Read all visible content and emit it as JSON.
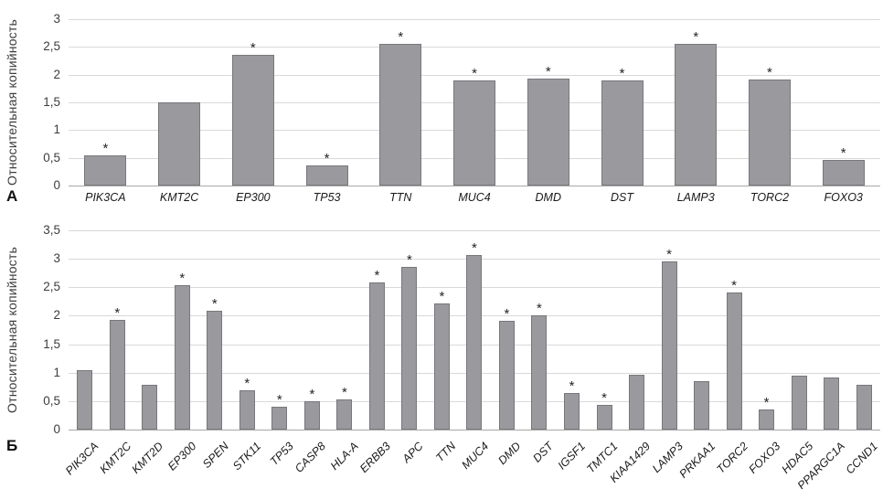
{
  "figure": {
    "background": "#ffffff",
    "bar_fill": "#9a9a9e",
    "bar_border": "#77777c",
    "gridline_color": "#d9d9d9",
    "axis_color": "#a8a8a8",
    "text_color": "#262626",
    "significance_marker": "*"
  },
  "chart_data": [
    {
      "type": "bar",
      "panel": "А",
      "title": "",
      "xlabel": "",
      "ylabel": "Относительная копийность",
      "ylim": [
        0,
        3
      ],
      "grid": true,
      "ytick_values": [
        0,
        0.5,
        1,
        1.5,
        2,
        2.5,
        3
      ],
      "ytick_labels": [
        "0",
        "0,5",
        "1",
        "1,5",
        "2",
        "2,5",
        "3"
      ],
      "categories": [
        "PIK3CA",
        "KMT2C",
        "EP300",
        "TP53",
        "TTN",
        "MUC4",
        "DMD",
        "DST",
        "LAMP3",
        "TORC2",
        "FOXO3"
      ],
      "values": [
        0.55,
        1.5,
        2.35,
        0.37,
        2.55,
        1.9,
        1.93,
        1.89,
        2.56,
        1.91,
        0.46
      ],
      "significant": [
        true,
        false,
        true,
        true,
        true,
        true,
        true,
        true,
        true,
        true,
        true
      ],
      "xlabel_rotation": 0
    },
    {
      "type": "bar",
      "panel": "Б",
      "title": "",
      "xlabel": "",
      "ylabel": "Относительная копийность",
      "ylim": [
        0,
        3.5
      ],
      "grid": true,
      "ytick_values": [
        0,
        0.5,
        1,
        1.5,
        2,
        2.5,
        3,
        3.5
      ],
      "ytick_labels": [
        "0",
        "0,5",
        "1",
        "1,5",
        "2",
        "2,5",
        "3",
        "3,5"
      ],
      "categories": [
        "PIK3CA",
        "KMT2C",
        "KMT2D",
        "EP300",
        "SPEN",
        "STK11",
        "TP53",
        "CASP8",
        "HLA-A",
        "ERBB3",
        "APC",
        "TTN",
        "MUC4",
        "DMD",
        "DST",
        "IGSF1",
        "TMTC1",
        "KIAA1429",
        "LAMP3",
        "PRKAA1",
        "TORC2",
        "FOXO3",
        "HDAC5",
        "PPARGC1A",
        "CCND1"
      ],
      "values": [
        1.04,
        1.93,
        0.78,
        2.54,
        2.09,
        0.69,
        0.4,
        0.49,
        0.53,
        2.58,
        2.86,
        2.21,
        3.06,
        1.91,
        2.01,
        0.64,
        0.44,
        0.96,
        2.96,
        0.85,
        2.41,
        0.35,
        0.95,
        0.91,
        0.78
      ],
      "significant": [
        false,
        true,
        false,
        true,
        true,
        true,
        true,
        true,
        true,
        true,
        true,
        true,
        true,
        true,
        true,
        true,
        true,
        false,
        true,
        false,
        true,
        true,
        false,
        false,
        false
      ],
      "xlabel_rotation": -45
    }
  ]
}
